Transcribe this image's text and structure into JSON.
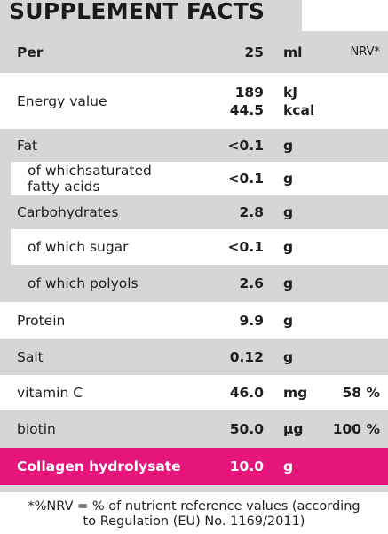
{
  "title": "SUPPLEMENT FACTS",
  "header": {
    "name": "Per",
    "value": "25",
    "unit": "ml",
    "nrv": "NRV*"
  },
  "rows": [
    {
      "name": "Energy value",
      "values": [
        "189",
        "44.5"
      ],
      "units": [
        "kJ",
        "kcal"
      ],
      "nrv": ""
    },
    {
      "name": "Fat",
      "values": [
        "<0.1"
      ],
      "units": [
        "g"
      ],
      "nrv": ""
    },
    {
      "name_lines": [
        "of whichsaturated",
        "fatty acids"
      ],
      "values": [
        "<0.1"
      ],
      "units": [
        "g"
      ],
      "nrv": ""
    },
    {
      "name": "Carbohydrates",
      "values": [
        "2.8"
      ],
      "units": [
        "g"
      ],
      "nrv": ""
    },
    {
      "name": "of which sugar",
      "values": [
        "<0.1"
      ],
      "units": [
        "g"
      ],
      "nrv": ""
    },
    {
      "name": "of which polyols",
      "values": [
        "2.6"
      ],
      "units": [
        "g"
      ],
      "nrv": ""
    },
    {
      "name": "Protein",
      "values": [
        "9.9"
      ],
      "units": [
        "g"
      ],
      "nrv": ""
    },
    {
      "name": "Salt",
      "values": [
        "0.12"
      ],
      "units": [
        "g"
      ],
      "nrv": ""
    },
    {
      "name": "vitamin C",
      "values": [
        "46.0"
      ],
      "units": [
        "mg"
      ],
      "nrv": "58 %"
    },
    {
      "name": "biotin",
      "values": [
        "50.0"
      ],
      "units": [
        "µg"
      ],
      "nrv": "100 %"
    },
    {
      "name": "Collagen hydrolysate",
      "values": [
        "10.0"
      ],
      "units": [
        "g"
      ],
      "nrv": ""
    }
  ],
  "footnote": [
    "*%NRV = % of nutrient reference values (according",
    "to Regulation (EU) No. 1169/2011)"
  ],
  "colors": {
    "panel_gray": "#d7d5d6",
    "accent_pink": "#e5157c",
    "text": "#1e1e1e"
  }
}
